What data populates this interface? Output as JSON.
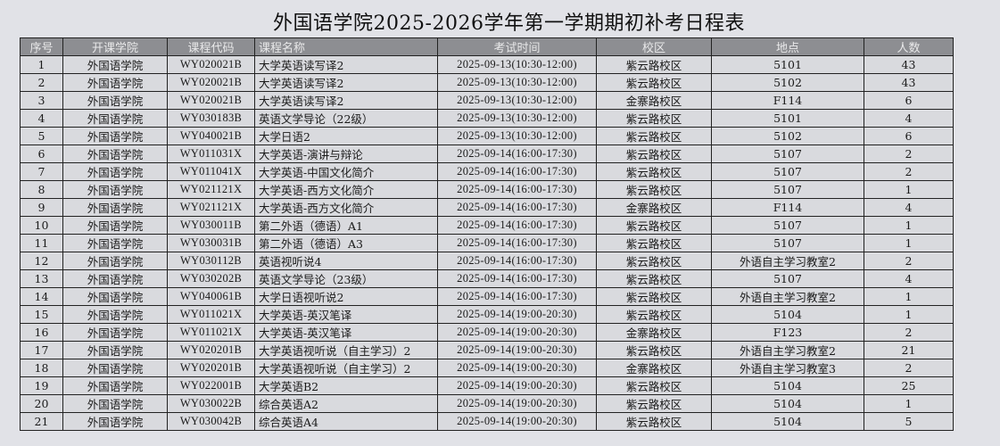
{
  "title": "外国语学院2025-2026学年第一学期期初补考日程表",
  "columns": [
    "序号",
    "开课学院",
    "课程代码",
    "课程名称",
    "考试时间",
    "校区",
    "地点",
    "人数"
  ],
  "rows": [
    [
      "1",
      "外国语学院",
      "WY020021B",
      "大学英语读写译2",
      "2025-09-13(10:30-12:00)",
      "紫云路校区",
      "5101",
      "43"
    ],
    [
      "2",
      "外国语学院",
      "WY020021B",
      "大学英语读写译2",
      "2025-09-13(10:30-12:00)",
      "紫云路校区",
      "5102",
      "43"
    ],
    [
      "3",
      "外国语学院",
      "WY020021B",
      "大学英语读写译2",
      "2025-09-13(10:30-12:00)",
      "金寨路校区",
      "F114",
      "6"
    ],
    [
      "4",
      "外国语学院",
      "WY030183B",
      "英语文学导论（22级）",
      "2025-09-13(10:30-12:00)",
      "紫云路校区",
      "5101",
      "4"
    ],
    [
      "5",
      "外国语学院",
      "WY040021B",
      "大学日语2",
      "2025-09-13(10:30-12:00)",
      "紫云路校区",
      "5102",
      "6"
    ],
    [
      "6",
      "外国语学院",
      "WY011031X",
      "大学英语-演讲与辩论",
      "2025-09-14(16:00-17:30)",
      "紫云路校区",
      "5107",
      "2"
    ],
    [
      "7",
      "外国语学院",
      "WY011041X",
      "大学英语-中国文化简介",
      "2025-09-14(16:00-17:30)",
      "紫云路校区",
      "5107",
      "2"
    ],
    [
      "8",
      "外国语学院",
      "WY021121X",
      "大学英语-西方文化简介",
      "2025-09-14(16:00-17:30)",
      "紫云路校区",
      "5107",
      "1"
    ],
    [
      "9",
      "外国语学院",
      "WY021121X",
      "大学英语-西方文化简介",
      "2025-09-14(16:00-17:30)",
      "金寨路校区",
      "F114",
      "4"
    ],
    [
      "10",
      "外国语学院",
      "WY030011B",
      "第二外语（德语）A1",
      "2025-09-14(16:00-17:30)",
      "紫云路校区",
      "5107",
      "1"
    ],
    [
      "11",
      "外国语学院",
      "WY030031B",
      "第二外语（德语）A3",
      "2025-09-14(16:00-17:30)",
      "紫云路校区",
      "5107",
      "1"
    ],
    [
      "12",
      "外国语学院",
      "WY030112B",
      "英语视听说4",
      "2025-09-14(16:00-17:30)",
      "紫云路校区",
      "外语自主学习教室2",
      "2"
    ],
    [
      "13",
      "外国语学院",
      "WY030202B",
      "英语文学导论（23级）",
      "2025-09-14(16:00-17:30)",
      "紫云路校区",
      "5107",
      "4"
    ],
    [
      "14",
      "外国语学院",
      "WY040061B",
      "大学日语视听说2",
      "2025-09-14(16:00-17:30)",
      "紫云路校区",
      "外语自主学习教室2",
      "1"
    ],
    [
      "15",
      "外国语学院",
      "WY011021X",
      "大学英语-英汉笔译",
      "2025-09-14(19:00-20:30)",
      "紫云路校区",
      "5104",
      "1"
    ],
    [
      "16",
      "外国语学院",
      "WY011021X",
      "大学英语-英汉笔译",
      "2025-09-14(19:00-20:30)",
      "金寨路校区",
      "F123",
      "2"
    ],
    [
      "17",
      "外国语学院",
      "WY020201B",
      "大学英语视听说（自主学习）2",
      "2025-09-14(19:00-20:30)",
      "紫云路校区",
      "外语自主学习教室2",
      "21"
    ],
    [
      "18",
      "外国语学院",
      "WY020201B",
      "大学英语视听说（自主学习）2",
      "2025-09-14(19:00-20:30)",
      "金寨路校区",
      "外语自主学习教室3",
      "2"
    ],
    [
      "19",
      "外国语学院",
      "WY022001B",
      "大学英语B2",
      "2025-09-14(19:00-20:30)",
      "紫云路校区",
      "5104",
      "25"
    ],
    [
      "20",
      "外国语学院",
      "WY030022B",
      "综合英语A2",
      "2025-09-14(19:00-20:30)",
      "紫云路校区",
      "5104",
      "1"
    ],
    [
      "21",
      "外国语学院",
      "WY030042B",
      "综合英语A4",
      "2025-09-14(19:00-20:30)",
      "紫云路校区",
      "5104",
      "5"
    ]
  ]
}
